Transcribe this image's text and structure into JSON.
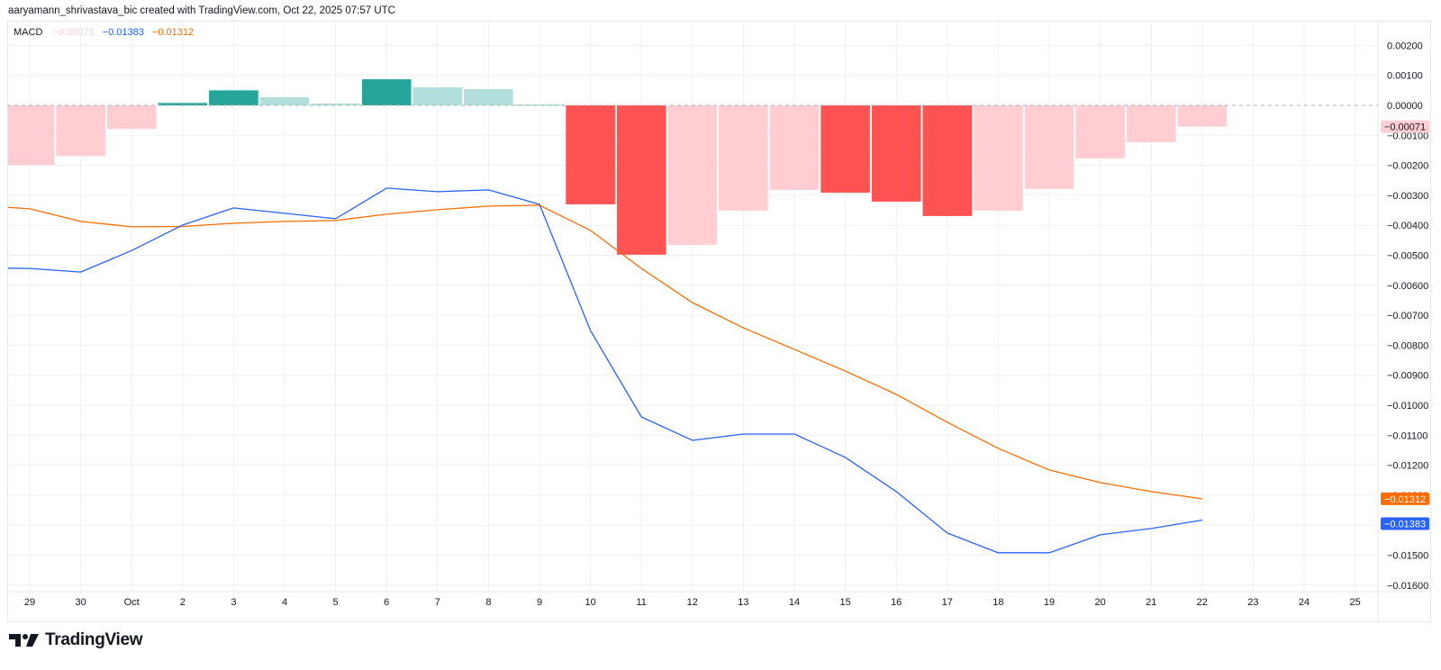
{
  "header": {
    "attribution": "aaryamann_shrivastava_bic created with TradingView.com, Oct 22, 2025 07:57 UTC"
  },
  "legend": {
    "name": "MACD",
    "histogram_value": "−0.00071",
    "macd_value": "−0.01383",
    "signal_value": "−0.01312"
  },
  "footer": {
    "brand": "TradingView",
    "logo_icon": "tradingview-logo-icon"
  },
  "colors": {
    "macd_line": "#2962ff",
    "signal_line": "#ff6d00",
    "hist_pos_strong": "#26a69a",
    "hist_pos_weak": "#b2dfdb",
    "hist_neg_strong": "#ff5252",
    "hist_neg_weak": "#ffcdd2",
    "grid": "#f0f1f3",
    "zero_line": "#b2b5be"
  },
  "chart_data": {
    "type": "bar+line",
    "title": "MACD",
    "xlabel": "",
    "ylabel": "",
    "grid": true,
    "legend_position": "top-left",
    "x_tick_labels": [
      "29",
      "30",
      "Oct",
      "2",
      "3",
      "4",
      "5",
      "6",
      "7",
      "8",
      "9",
      "10",
      "11",
      "12",
      "13",
      "14",
      "15",
      "16",
      "17",
      "18",
      "19",
      "20",
      "21",
      "22",
      "23",
      "24",
      "25"
    ],
    "y_tick_labels": [
      "0.00200",
      "0.00100",
      "0.00000",
      "−0.00100",
      "−0.00200",
      "−0.00300",
      "−0.00400",
      "−0.00500",
      "−0.00600",
      "−0.00700",
      "−0.00800",
      "−0.00900",
      "−0.01000",
      "−0.01100",
      "−0.01200",
      "−0.01300",
      "−0.01400",
      "−0.01500",
      "−0.01600"
    ],
    "y_ticks": [
      0.002,
      0.001,
      0,
      -0.001,
      -0.002,
      -0.003,
      -0.004,
      -0.005,
      -0.006,
      -0.007,
      -0.008,
      -0.009,
      -0.01,
      -0.011,
      -0.012,
      -0.013,
      -0.014,
      -0.015,
      -0.016
    ],
    "ylim": [
      -0.0168,
      0.0028
    ],
    "categories": [
      "Sep 29",
      "Sep 30",
      "Oct 1",
      "Oct 2",
      "Oct 3",
      "Oct 4",
      "Oct 5",
      "Oct 6",
      "Oct 7",
      "Oct 8",
      "Oct 9",
      "Oct 10",
      "Oct 11",
      "Oct 12",
      "Oct 13",
      "Oct 14",
      "Oct 15",
      "Oct 16",
      "Oct 17",
      "Oct 18",
      "Oct 19",
      "Oct 20",
      "Oct 21",
      "Oct 22"
    ],
    "series": [
      {
        "name": "Histogram",
        "type": "bar",
        "values": [
          -0.00199,
          -0.00169,
          -0.00079,
          8e-05,
          0.0005,
          0.00027,
          6e-05,
          0.00087,
          0.0006,
          0.00054,
          3e-05,
          -0.0033,
          -0.00498,
          -0.00465,
          -0.00351,
          -0.00282,
          -0.00291,
          -0.00321,
          -0.00369,
          -0.00351,
          -0.00279,
          -0.00177,
          -0.00123,
          -0.00071
        ],
        "colors": [
          "neg_weak",
          "neg_weak",
          "neg_weak",
          "pos_strong",
          "pos_strong",
          "pos_weak",
          "pos_weak",
          "pos_strong",
          "pos_weak",
          "pos_weak",
          "pos_weak",
          "neg_strong",
          "neg_strong",
          "neg_weak",
          "neg_weak",
          "neg_weak",
          "neg_strong",
          "neg_strong",
          "neg_strong",
          "neg_weak",
          "neg_weak",
          "neg_weak",
          "neg_weak",
          "neg_weak"
        ]
      },
      {
        "name": "MACD",
        "type": "line",
        "values": [
          -0.00544,
          -0.00556,
          -0.00484,
          -0.00399,
          -0.00342,
          -0.0036,
          -0.00378,
          -0.00276,
          -0.00288,
          -0.00282,
          -0.0033,
          -0.00751,
          -0.01039,
          -0.01117,
          -0.01096,
          -0.01096,
          -0.01174,
          -0.01288,
          -0.01426,
          -0.01492,
          -0.01492,
          -0.01432,
          -0.01411,
          -0.01383
        ]
      },
      {
        "name": "Signal",
        "type": "line",
        "values": [
          -0.00345,
          -0.00387,
          -0.00405,
          -0.00404,
          -0.00393,
          -0.00387,
          -0.00384,
          -0.00363,
          -0.00348,
          -0.00336,
          -0.00333,
          -0.00417,
          -0.00544,
          -0.00658,
          -0.00742,
          -0.00814,
          -0.00886,
          -0.00964,
          -0.01057,
          -0.01144,
          -0.01216,
          -0.01258,
          -0.01288,
          -0.01312
        ]
      }
    ],
    "last_value_tags": [
      {
        "series": "Histogram",
        "label": "−0.00071",
        "value": -0.00071,
        "bg": "#ffcdd2",
        "fg": "#131722"
      },
      {
        "series": "Signal",
        "label": "−0.01312",
        "value": -0.01312,
        "bg": "#ff6d00",
        "fg": "#ffffff"
      },
      {
        "series": "MACD",
        "label": "−0.01383",
        "value": -0.01383,
        "bg": "#2962ff",
        "fg": "#ffffff"
      }
    ]
  }
}
